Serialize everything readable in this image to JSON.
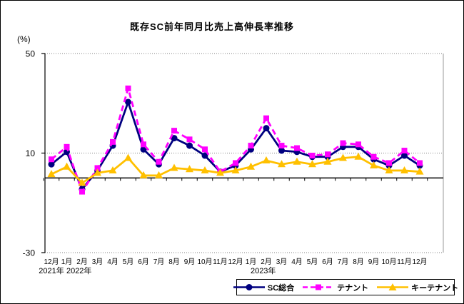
{
  "title": "既存SC前年同月比売上高伸長率推移",
  "y_unit_label": "(%)",
  "chart_data": {
    "type": "line",
    "title": "既存SC前年同月比売上高伸長率推移",
    "ylabel": "(%)",
    "ylim": [
      -30,
      50
    ],
    "y_ticks": [
      50,
      10,
      -30
    ],
    "grid": "dotted horizontal lines at y ticks, solid axis line at 0",
    "legend_position": "bottom-right boxed",
    "categories": [
      "12月",
      "1月",
      "2月",
      "3月",
      "4月",
      "5月",
      "6月",
      "7月",
      "8月",
      "9月",
      "10月",
      "11月",
      "12月",
      "1月",
      "2月",
      "3月",
      "4月",
      "5月",
      "6月",
      "7月",
      "8月",
      "9月",
      "10月",
      "11月",
      "12月"
    ],
    "x_year_labels": [
      {
        "text": "2021年",
        "index": 0
      },
      {
        "text": "2022年",
        "index": 1.8
      },
      {
        "text": "2023年",
        "index": 13.8
      }
    ],
    "series": [
      {
        "name": "SC総合",
        "color": "#000080",
        "marker": "circle",
        "line_style": "solid",
        "values": [
          5.5,
          10.5,
          -4.5,
          3,
          13,
          30.5,
          11.5,
          5.5,
          16,
          13,
          9,
          2.5,
          5,
          11.5,
          20,
          11,
          10.5,
          8.5,
          8.5,
          12.5,
          12.5,
          7.5,
          5,
          9,
          5
        ]
      },
      {
        "name": "テナント",
        "color": "#FF00FF",
        "marker": "square",
        "line_style": "dashed",
        "values": [
          7.5,
          12.5,
          -5.5,
          4,
          14.5,
          36,
          13.5,
          6.5,
          19,
          15.5,
          11.5,
          2.5,
          6,
          13,
          24,
          13,
          12,
          9,
          9.5,
          14,
          13.5,
          8.5,
          6,
          11,
          6
        ]
      },
      {
        "name": "キーテナント",
        "color": "#FFC000",
        "marker": "triangle",
        "line_style": "solid",
        "values": [
          1.5,
          4.5,
          -2,
          2,
          3,
          8,
          1,
          1,
          4,
          3.5,
          3,
          2,
          3,
          4.5,
          7,
          5.5,
          6.5,
          5.5,
          6.5,
          8,
          8.5,
          5,
          3,
          3,
          2.5
        ]
      }
    ],
    "colors": {
      "axis": "#000000",
      "gridline": "#808080",
      "plot_right_border": "#999999"
    }
  }
}
